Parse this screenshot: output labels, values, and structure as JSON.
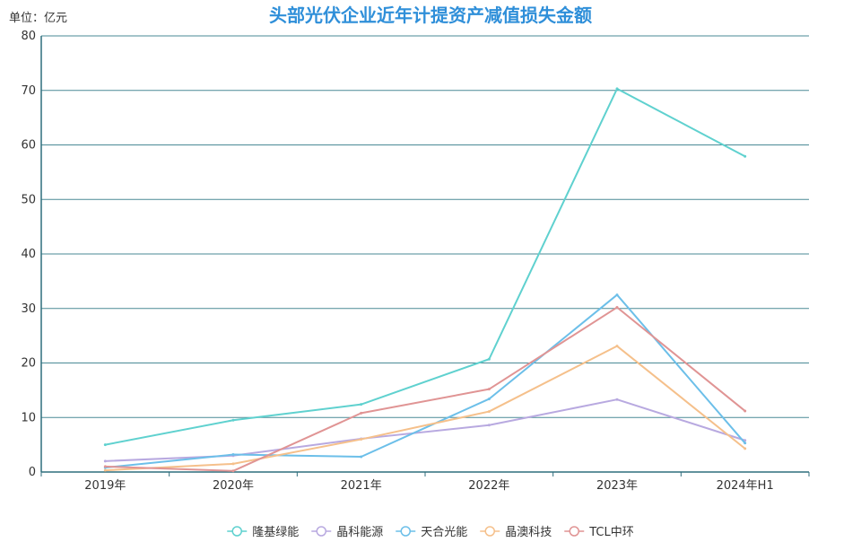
{
  "chart_data": {
    "type": "line",
    "title": "头部光伏企业近年计提资产减值损失金额",
    "unit_label": "单位：亿元",
    "categories": [
      "2019年",
      "2020年",
      "2021年",
      "2022年",
      "2023年",
      "2024年H1"
    ],
    "ylim": [
      0,
      80
    ],
    "yticks": [
      0,
      10,
      20,
      30,
      40,
      50,
      60,
      70,
      80
    ],
    "grid": true,
    "legend_position": "bottom",
    "colors": {
      "axis": "#2f6e7d",
      "grid": "#4a8a96"
    },
    "series": [
      {
        "name": "隆基绿能",
        "color": "#5fd1cf",
        "values": [
          5.0,
          9.5,
          12.4,
          20.7,
          70.3,
          57.9
        ]
      },
      {
        "name": "晶科能源",
        "color": "#b8a9e0",
        "values": [
          2.0,
          3.0,
          6.1,
          8.6,
          13.3,
          5.8
        ]
      },
      {
        "name": "天合光能",
        "color": "#6cbfe9",
        "values": [
          0.8,
          3.2,
          2.8,
          13.4,
          32.5,
          5.3
        ]
      },
      {
        "name": "晶澳科技",
        "color": "#f5c08b",
        "values": [
          0.3,
          1.5,
          6.0,
          11.1,
          23.1,
          4.3
        ]
      },
      {
        "name": "TCL中环",
        "color": "#e09494",
        "values": [
          1.0,
          0.2,
          10.8,
          15.2,
          30.2,
          11.2
        ]
      }
    ]
  }
}
